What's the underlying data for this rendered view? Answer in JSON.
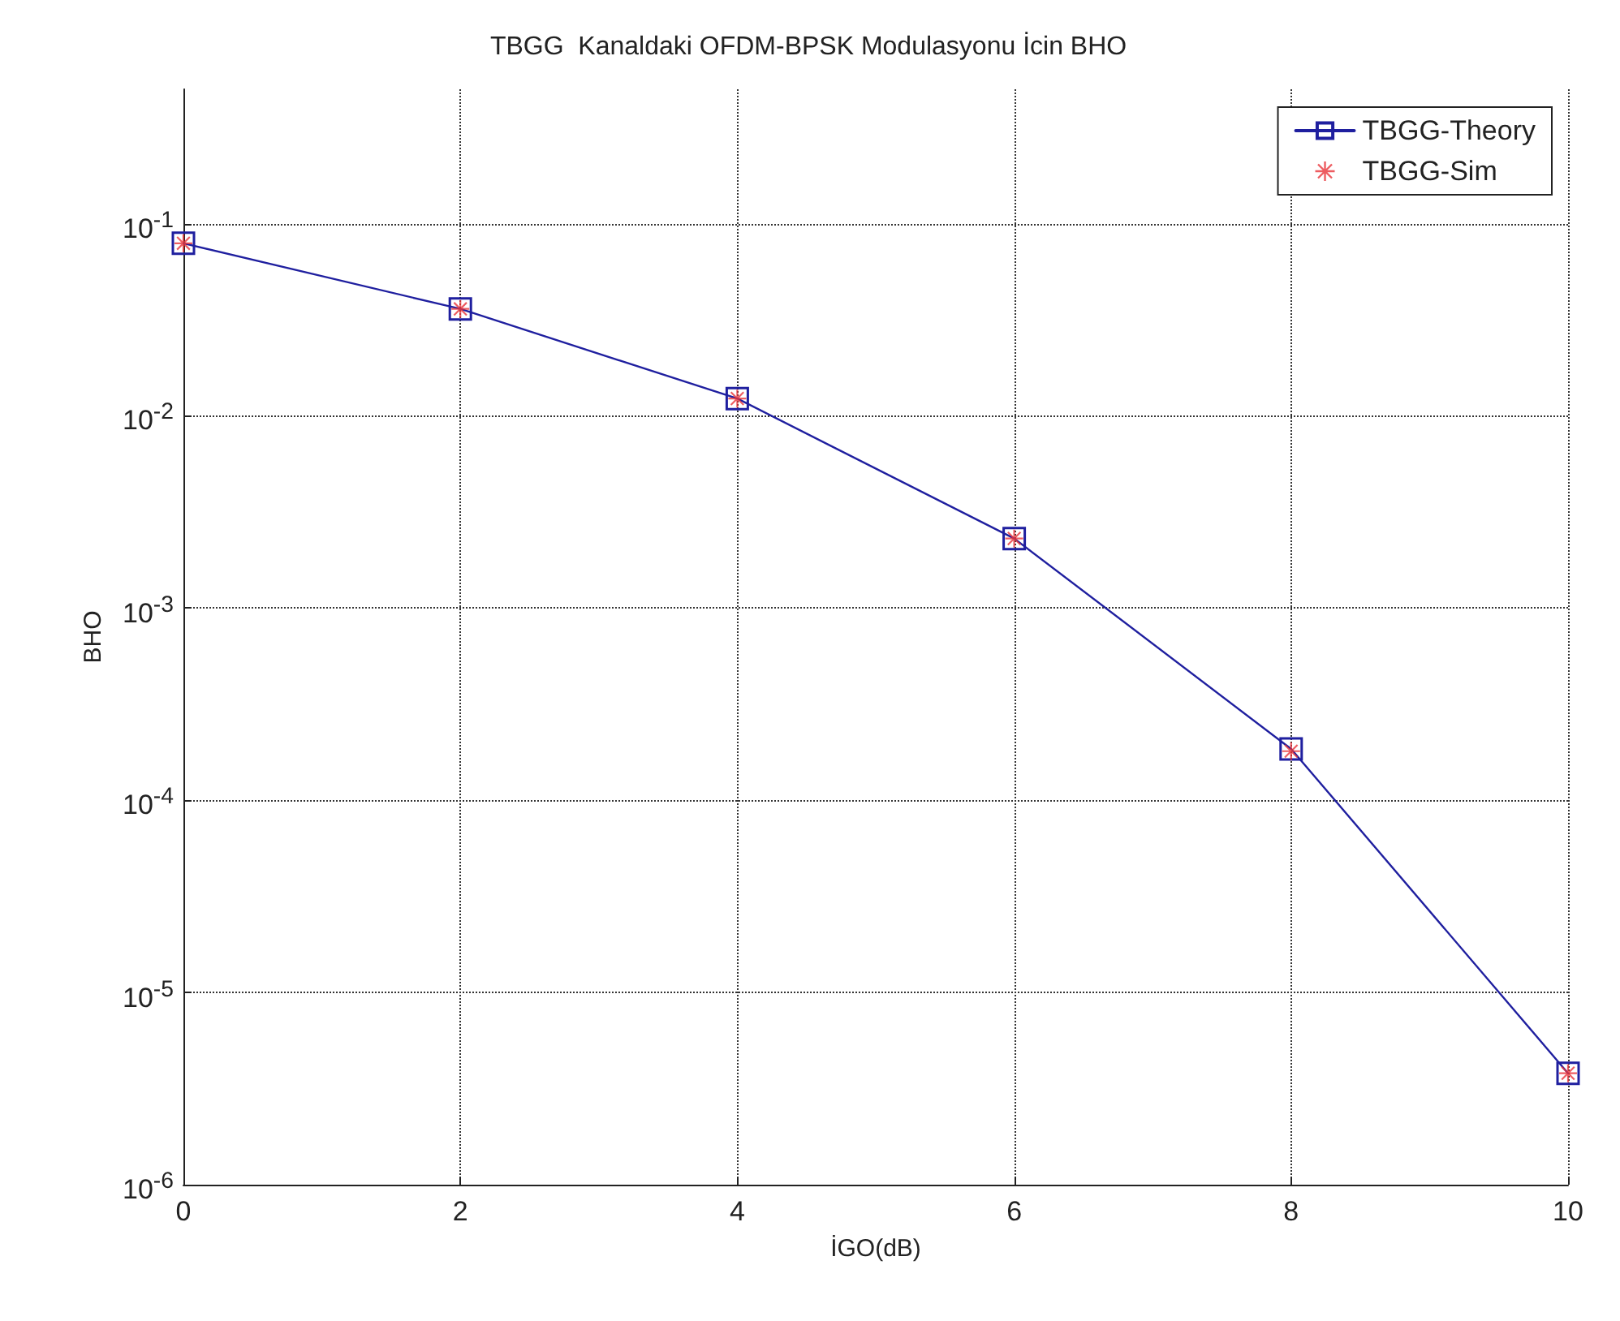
{
  "chart_data": {
    "type": "line",
    "title": "TBGG  Kanaldaki OFDM-BPSK Modulasyonu İcin BHO",
    "xlabel": "İGO(dB)",
    "ylabel": "BHO",
    "x": [
      0,
      2,
      4,
      6,
      8,
      10
    ],
    "series": [
      {
        "name": "TBGG-Theory",
        "color": "#1f1f9f",
        "marker": "square",
        "line_style": "solid",
        "values": [
          0.079,
          0.036,
          0.0123,
          0.0023,
          0.000185,
          3.8e-06
        ]
      },
      {
        "name": "TBGG-Sim",
        "type": "scatter",
        "color": "#e8353a",
        "marker": "star",
        "values": [
          0.079,
          0.036,
          0.0123,
          0.0023,
          0.00018,
          3.8e-06
        ]
      }
    ],
    "log": "y",
    "xlim": [
      0,
      10
    ],
    "xticks": [
      0,
      2,
      4,
      6,
      8,
      10
    ],
    "ylim": [
      1e-06,
      0.5
    ],
    "yticks": [
      {
        "value": 1e-06,
        "label": "10$^{-6}$"
      },
      {
        "value": 1e-05,
        "label": "10$^{-5}$"
      },
      {
        "value": 0.0001,
        "label": "10$^{-4}$"
      },
      {
        "value": 0.001,
        "label": "10$^{-3}$"
      },
      {
        "value": 0.01,
        "label": "10$^{-2}$"
      },
      {
        "value": 0.1,
        "label": "10$^{-1}$"
      }
    ],
    "grid": true,
    "legend": "top right"
  }
}
